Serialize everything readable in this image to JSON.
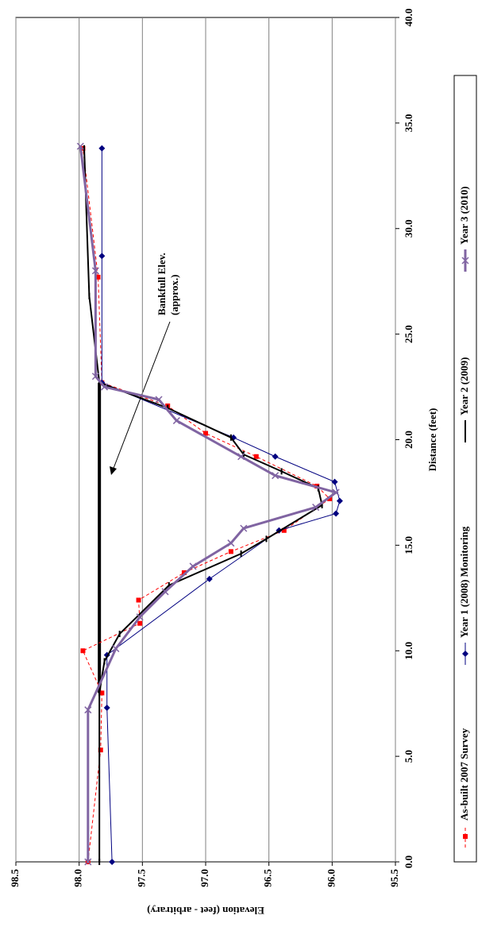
{
  "chart_data": {
    "type": "line",
    "xlabel": "Distance (feet)",
    "ylabel": "Elevation (feet - arbitrary)",
    "annotation": [
      "Bankfull Elev.",
      "(approx.)"
    ],
    "xlim": [
      0,
      40
    ],
    "xticks": [
      {
        "value": 0,
        "label": "0.0"
      },
      {
        "value": 5,
        "label": "5.0"
      },
      {
        "value": 10,
        "label": "10.0"
      },
      {
        "value": 15,
        "label": "15.0"
      },
      {
        "value": 20,
        "label": "20.0"
      },
      {
        "value": 25,
        "label": "25.0"
      },
      {
        "value": 30,
        "label": "30.0"
      },
      {
        "value": 35,
        "label": "35.0"
      },
      {
        "value": 40,
        "label": "40.0"
      }
    ],
    "ylim": [
      95.5,
      98.5
    ],
    "yticks": [
      95.5,
      {
        "value": 96,
        "label": "96.0"
      },
      96.5,
      {
        "value": 97,
        "label": "97.0"
      },
      97.5,
      {
        "value": 98,
        "label": "98.0"
      },
      98.5
    ],
    "grid": true,
    "legend": "bottom",
    "bankfull": {
      "x": [
        8.0,
        22.7
      ],
      "values": [
        97.84,
        97.84
      ],
      "color": "#000000"
    },
    "series": [
      {
        "name": "As-built 2007 Survey",
        "color": "#ff0000",
        "marker": "square",
        "dash": true,
        "x": [
          0,
          5.3,
          8.0,
          10.0,
          11.3,
          12.4,
          13.7,
          14.7,
          15.7,
          17.2,
          17.8,
          19.2,
          20.3,
          21.6,
          22.7,
          27.7,
          33.8
        ],
        "values": [
          97.93,
          97.83,
          97.82,
          97.97,
          97.52,
          97.53,
          97.17,
          96.8,
          96.38,
          96.02,
          96.12,
          96.6,
          97.0,
          97.3,
          97.82,
          97.85,
          97.97
        ]
      },
      {
        "name": "Year 1 (2008) Monitoring",
        "color": "#000080",
        "marker": "diamond",
        "dash": false,
        "x": [
          0,
          7.3,
          9.8,
          13.4,
          15.7,
          16.5,
          17.1,
          18.0,
          19.2,
          20.1,
          22.7,
          28.7,
          33.8
        ],
        "values": [
          97.74,
          97.78,
          97.78,
          96.97,
          96.42,
          95.97,
          95.94,
          95.98,
          96.45,
          96.78,
          97.82,
          97.82,
          97.82
        ]
      },
      {
        "name": "Year 2 (2009)",
        "color": "#000000",
        "marker": "dash",
        "dash": false,
        "x": [
          0,
          8.0,
          9.5,
          10.8,
          13.1,
          14.6,
          15.3,
          16.9,
          17.7,
          18.5,
          19.3,
          20.1,
          21.5,
          22.7,
          26.8,
          33.8
        ],
        "values": [
          97.84,
          97.84,
          97.8,
          97.68,
          97.29,
          96.72,
          96.52,
          96.08,
          96.11,
          96.4,
          96.7,
          96.8,
          97.3,
          97.84,
          97.92,
          97.96
        ]
      },
      {
        "name": "Year 3 (2010)",
        "color": "#8064a2",
        "marker": "x",
        "dash": false,
        "x": [
          0,
          7.2,
          10.1,
          11.6,
          12.8,
          14.0,
          15.1,
          15.8,
          16.8,
          17.5,
          18.3,
          19.2,
          20.9,
          21.9,
          22.5,
          23.0,
          28.0,
          33.9
        ],
        "values": [
          97.93,
          97.93,
          97.71,
          97.52,
          97.32,
          97.1,
          96.8,
          96.7,
          96.13,
          95.97,
          96.45,
          96.72,
          97.23,
          97.37,
          97.8,
          97.87,
          97.87,
          97.99
        ]
      }
    ]
  }
}
